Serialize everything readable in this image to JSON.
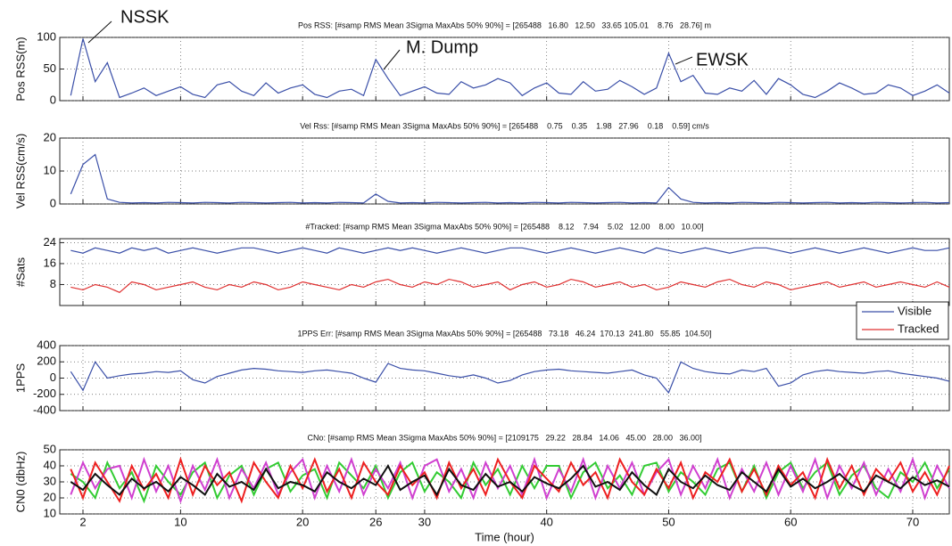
{
  "chart_data": [
    {
      "type": "line",
      "title": "Pos RSS: [#samp RMS Mean 3Sigma MaxAbs 50% 90%] = [265488   16.80   12.50   33.65 105.01    8.76   28.76] m",
      "ylabel": "Pos RSS(m)",
      "annotations": [
        "NSSK",
        "M. Dump",
        "EWSK"
      ],
      "x": [
        1,
        2,
        3,
        4,
        5,
        6,
        7,
        8,
        9,
        10,
        11,
        12,
        13,
        14,
        15,
        16,
        17,
        18,
        19,
        20,
        21,
        22,
        23,
        24,
        25,
        26,
        27,
        28,
        29,
        30,
        31,
        32,
        33,
        34,
        35,
        36,
        37,
        38,
        39,
        40,
        41,
        42,
        43,
        44,
        45,
        46,
        47,
        48,
        49,
        50,
        51,
        52,
        53,
        54,
        55,
        56,
        57,
        58,
        59,
        60,
        61,
        62,
        63,
        64,
        65,
        66,
        67,
        68,
        69,
        70,
        71,
        72,
        73
      ],
      "values": [
        8,
        98,
        30,
        60,
        5,
        12,
        20,
        8,
        15,
        22,
        10,
        5,
        25,
        30,
        15,
        8,
        28,
        12,
        20,
        25,
        10,
        5,
        15,
        18,
        8,
        65,
        35,
        8,
        15,
        22,
        12,
        10,
        30,
        20,
        25,
        35,
        28,
        8,
        20,
        28,
        12,
        10,
        30,
        15,
        18,
        32,
        22,
        10,
        20,
        75,
        30,
        40,
        12,
        10,
        20,
        15,
        32,
        10,
        35,
        25,
        10,
        5,
        15,
        28,
        20,
        10,
        12,
        25,
        20,
        8,
        15,
        25,
        12
      ],
      "color": "#3a4fa8",
      "xlim": [
        0.1,
        73
      ],
      "xticks": [
        2,
        10,
        20,
        26,
        30,
        40,
        50,
        60,
        70
      ],
      "ylim": [
        0,
        100
      ],
      "yticks": [
        0,
        50,
        100
      ],
      "grid": true
    },
    {
      "type": "line",
      "title": "Vel Rss: [#samp RMS Mean 3Sigma MaxAbs 50% 90%] = [265488    0.75    0.35    1.98   27.96    0.18    0.59] cm/s",
      "ylabel": "Vel RSS(cm/s)",
      "x": [
        1,
        2,
        3,
        4,
        5,
        6,
        7,
        8,
        9,
        10,
        11,
        12,
        13,
        14,
        15,
        16,
        17,
        18,
        19,
        20,
        21,
        22,
        23,
        24,
        25,
        26,
        27,
        28,
        29,
        30,
        31,
        32,
        33,
        34,
        35,
        36,
        37,
        38,
        39,
        40,
        41,
        42,
        43,
        44,
        45,
        46,
        47,
        48,
        49,
        50,
        51,
        52,
        53,
        54,
        55,
        56,
        57,
        58,
        59,
        60,
        61,
        62,
        63,
        64,
        65,
        66,
        67,
        68,
        69,
        70,
        71,
        72,
        73
      ],
      "values": [
        3,
        12,
        15,
        1.5,
        0.5,
        0.3,
        0.4,
        0.3,
        0.5,
        0.4,
        0.3,
        0.5,
        0.4,
        0.3,
        0.5,
        0.4,
        0.3,
        0.4,
        0.5,
        0.3,
        0.4,
        0.3,
        0.5,
        0.4,
        0.3,
        3,
        0.8,
        0.3,
        0.4,
        0.3,
        0.5,
        0.4,
        0.3,
        0.4,
        0.5,
        0.3,
        0.4,
        0.3,
        0.5,
        0.4,
        0.3,
        0.5,
        0.4,
        0.3,
        0.4,
        0.5,
        0.3,
        0.4,
        0.3,
        5,
        1.5,
        0.5,
        0.3,
        0.4,
        0.3,
        0.5,
        0.4,
        0.3,
        0.5,
        0.4,
        0.3,
        0.4,
        0.5,
        0.3,
        0.4,
        0.3,
        0.5,
        0.4,
        0.3,
        0.4,
        0.5,
        0.3,
        0.4
      ],
      "color": "#3a4fa8",
      "xlim": [
        0.1,
        73
      ],
      "xticks": [
        2,
        10,
        20,
        26,
        30,
        40,
        50,
        60,
        70
      ],
      "ylim": [
        0,
        20
      ],
      "yticks": [
        0,
        10,
        20
      ],
      "grid": true
    },
    {
      "type": "line",
      "title": "#Tracked: [#samp RMS Mean 3Sigma MaxAbs 50% 90%] = [265488    8.12    7.94    5.02   12.00    8.00   10.00]",
      "ylabel": "#Sats",
      "x": [
        1,
        2,
        3,
        4,
        5,
        6,
        7,
        8,
        9,
        10,
        11,
        12,
        13,
        14,
        15,
        16,
        17,
        18,
        19,
        20,
        21,
        22,
        23,
        24,
        25,
        26,
        27,
        28,
        29,
        30,
        31,
        32,
        33,
        34,
        35,
        36,
        37,
        38,
        39,
        40,
        41,
        42,
        43,
        44,
        45,
        46,
        47,
        48,
        49,
        50,
        51,
        52,
        53,
        54,
        55,
        56,
        57,
        58,
        59,
        60,
        61,
        62,
        63,
        64,
        65,
        66,
        67,
        68,
        69,
        70,
        71,
        72,
        73
      ],
      "series": [
        {
          "name": "Visible",
          "color": "#3a4fa8",
          "values": [
            21,
            20,
            22,
            21,
            20,
            22,
            21,
            22,
            20,
            21,
            22,
            21,
            20,
            21,
            22,
            22,
            21,
            20,
            21,
            22,
            21,
            20,
            22,
            21,
            20,
            21,
            22,
            21,
            22,
            21,
            20,
            21,
            22,
            21,
            20,
            21,
            22,
            22,
            21,
            20,
            21,
            22,
            21,
            20,
            21,
            22,
            21,
            20,
            22,
            21,
            20,
            21,
            22,
            21,
            20,
            21,
            22,
            22,
            21,
            20,
            21,
            22,
            21,
            20,
            21,
            22,
            21,
            20,
            21,
            22,
            21,
            21,
            22
          ]
        },
        {
          "name": "Tracked",
          "color": "#e03030",
          "values": [
            7,
            6,
            8,
            7,
            5,
            9,
            8,
            6,
            7,
            8,
            9,
            7,
            6,
            8,
            7,
            9,
            8,
            6,
            7,
            9,
            8,
            7,
            6,
            8,
            7,
            9,
            10,
            8,
            7,
            9,
            8,
            10,
            9,
            7,
            8,
            9,
            6,
            8,
            9,
            7,
            8,
            10,
            9,
            7,
            8,
            9,
            7,
            8,
            6,
            7,
            9,
            8,
            7,
            9,
            10,
            8,
            7,
            9,
            8,
            6,
            7,
            8,
            9,
            7,
            8,
            9,
            7,
            8,
            9,
            8,
            7,
            9,
            7
          ]
        }
      ],
      "legend": "lower right",
      "xlim": [
        0.1,
        73
      ],
      "xticks": [
        2,
        10,
        20,
        26,
        30,
        40,
        50,
        60,
        70
      ],
      "ylim": [
        0,
        25.5
      ],
      "yticks": [
        8,
        16,
        24
      ],
      "grid": true
    },
    {
      "type": "line",
      "title": "1PPS Err: [#samp RMS Mean 3Sigma MaxAbs 50% 90%] = [265488   73.18   46.24  170.13  241.80   55.85  104.50]",
      "ylabel": "1PPS",
      "x": [
        1,
        2,
        3,
        4,
        5,
        6,
        7,
        8,
        9,
        10,
        11,
        12,
        13,
        14,
        15,
        16,
        17,
        18,
        19,
        20,
        21,
        22,
        23,
        24,
        25,
        26,
        27,
        28,
        29,
        30,
        31,
        32,
        33,
        34,
        35,
        36,
        37,
        38,
        39,
        40,
        41,
        42,
        43,
        44,
        45,
        46,
        47,
        48,
        49,
        50,
        51,
        52,
        53,
        54,
        55,
        56,
        57,
        58,
        59,
        60,
        61,
        62,
        63,
        64,
        65,
        66,
        67,
        68,
        69,
        70,
        71,
        72,
        73
      ],
      "values": [
        80,
        -150,
        200,
        0,
        30,
        50,
        60,
        80,
        70,
        90,
        -20,
        -60,
        20,
        60,
        100,
        120,
        110,
        90,
        80,
        70,
        90,
        100,
        80,
        60,
        0,
        -50,
        180,
        120,
        100,
        90,
        60,
        30,
        10,
        40,
        0,
        -60,
        -30,
        40,
        80,
        100,
        110,
        90,
        80,
        70,
        60,
        80,
        100,
        40,
        0,
        -180,
        200,
        120,
        80,
        60,
        50,
        100,
        80,
        120,
        -100,
        -60,
        40,
        80,
        100,
        80,
        70,
        60,
        80,
        90,
        60,
        40,
        20,
        0,
        -40
      ],
      "color": "#3a4fa8",
      "xlim": [
        0.1,
        73
      ],
      "xticks": [
        2,
        10,
        20,
        26,
        30,
        40,
        50,
        60,
        70
      ],
      "ylim": [
        -400,
        400
      ],
      "yticks": [
        -400,
        -200,
        0,
        200,
        400
      ],
      "grid": true
    },
    {
      "type": "line",
      "title": "CNo: [#samp RMS Mean 3Sigma MaxAbs 50% 90%] = [2109175   29.22   28.84   14.06   45.00   28.00   36.00]",
      "ylabel": "CN0 (dbHz)",
      "xlabel": "Time (hour)",
      "x": [
        1,
        2,
        3,
        4,
        5,
        6,
        7,
        8,
        9,
        10,
        11,
        12,
        13,
        14,
        15,
        16,
        17,
        18,
        19,
        20,
        21,
        22,
        23,
        24,
        25,
        26,
        27,
        28,
        29,
        30,
        31,
        32,
        33,
        34,
        35,
        36,
        37,
        38,
        39,
        40,
        41,
        42,
        43,
        44,
        45,
        46,
        47,
        48,
        49,
        50,
        51,
        52,
        53,
        54,
        55,
        56,
        57,
        58,
        59,
        60,
        61,
        62,
        63,
        64,
        65,
        66,
        67,
        68,
        69,
        70,
        71,
        72,
        73
      ],
      "series": [
        {
          "color": "#33cc33",
          "values": [
            35,
            30,
            20,
            42,
            26,
            36,
            18,
            40,
            30,
            22,
            36,
            42,
            20,
            34,
            40,
            22,
            38,
            42,
            24,
            34,
            38,
            20,
            42,
            34,
            26,
            40,
            20,
            36,
            42,
            24,
            36,
            30,
            20,
            42,
            28,
            38,
            22,
            40,
            26,
            40,
            40,
            20,
            36,
            42,
            26,
            34,
            22,
            40,
            42,
            24,
            36,
            30,
            22,
            38,
            42,
            24,
            40,
            20,
            36,
            42,
            26,
            36,
            42,
            22,
            34,
            40,
            26,
            20,
            36,
            30,
            42,
            26,
            38
          ]
        },
        {
          "color": "#d040d0",
          "values": [
            22,
            42,
            26,
            38,
            40,
            20,
            44,
            24,
            40,
            18,
            40,
            25,
            44,
            20,
            38,
            26,
            42,
            22,
            36,
            44,
            20,
            40,
            24,
            44,
            22,
            38,
            26,
            42,
            20,
            40,
            44,
            24,
            38,
            20,
            42,
            26,
            40,
            22,
            44,
            20,
            38,
            24,
            44,
            20,
            40,
            26,
            42,
            22,
            36,
            44,
            22,
            40,
            26,
            44,
            20,
            38,
            24,
            42,
            22,
            40,
            24,
            44,
            20,
            40,
            26,
            42,
            22,
            38,
            24,
            44,
            20,
            40,
            26
          ]
        },
        {
          "color": "#ee2020",
          "values": [
            38,
            20,
            42,
            30,
            18,
            40,
            25,
            35,
            20,
            44,
            22,
            40,
            28,
            36,
            18,
            42,
            30,
            20,
            40,
            26,
            44,
            24,
            38,
            20,
            42,
            30,
            22,
            40,
            28,
            36,
            20,
            42,
            26,
            38,
            22,
            44,
            30,
            20,
            40,
            32,
            24,
            42,
            28,
            36,
            20,
            44,
            30,
            22,
            38,
            26,
            42,
            20,
            36,
            30,
            44,
            24,
            38,
            22,
            40,
            28,
            36,
            20,
            44,
            26,
            40,
            22,
            38,
            30,
            42,
            24,
            36,
            22,
            40
          ]
        },
        {
          "color": "#111111",
          "values": [
            30,
            25,
            35,
            28,
            22,
            32,
            26,
            30,
            24,
            33,
            28,
            22,
            35,
            27,
            30,
            25,
            38,
            26,
            30,
            28,
            24,
            36,
            30,
            26,
            32,
            28,
            40,
            25,
            30,
            34,
            22,
            38,
            28,
            25,
            35,
            27,
            30,
            24,
            33,
            29,
            26,
            32,
            40,
            27,
            30,
            25,
            36,
            28,
            22,
            38,
            30,
            26,
            34,
            28,
            25,
            36,
            30,
            24,
            38,
            27,
            32,
            26,
            30,
            35,
            28,
            24,
            34,
            30,
            26,
            33,
            28,
            31,
            27
          ]
        }
      ],
      "xlim": [
        0.1,
        73
      ],
      "xticks": [
        2,
        10,
        20,
        26,
        30,
        40,
        50,
        60,
        70
      ],
      "ylim": [
        10,
        50
      ],
      "yticks": [
        10,
        20,
        30,
        40,
        50
      ],
      "grid": true
    }
  ]
}
